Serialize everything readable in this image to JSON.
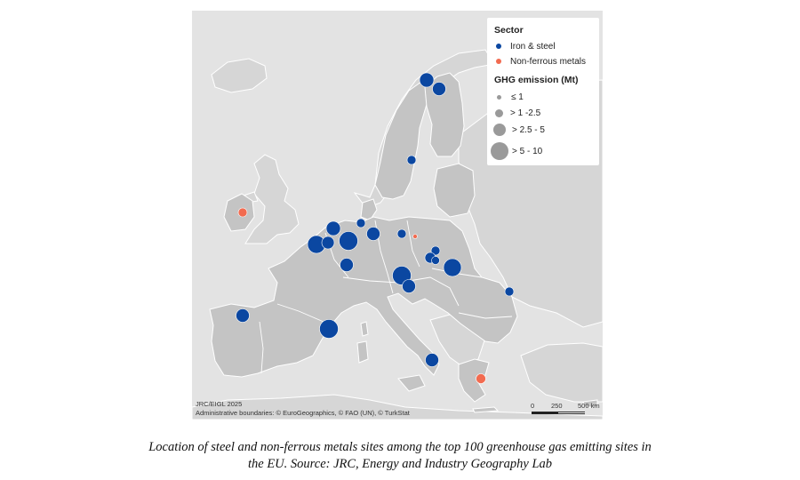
{
  "map": {
    "colors": {
      "background": "#e3e3e3",
      "eu_land": "#c4c4c4",
      "non_eu_land": "#d6d6d6",
      "borders": "#ffffff",
      "iron_steel": "#0b47a1",
      "non_ferrous": "#f26b50",
      "size_swatch": "#9a9a9a"
    },
    "legend": {
      "sector_title": "Sector",
      "sectors": [
        {
          "label": "Iron & steel",
          "icon": "blue-dot"
        },
        {
          "label": "Non-ferrous metals",
          "icon": "orange-dot"
        }
      ],
      "ghg_title": "GHG emission (Mt)",
      "size_classes": [
        {
          "label": "≤ 1"
        },
        {
          "label": "> 1 -2.5"
        },
        {
          "label": "> 2.5 - 5"
        },
        {
          "label": "> 5 - 10"
        }
      ]
    },
    "credits": {
      "line1": "JRC/EIGL 2025",
      "line2": "Administrative boundaries: © EuroGeographics, © FAO (UN), © TurkStat"
    },
    "scalebar": {
      "labels": [
        "0",
        "250",
        "500 km"
      ]
    }
  },
  "caption": {
    "line1": "Location of steel and non-ferrous metals sites among the top 100 greenhouse gas emitting sites in",
    "line2": "the EU. Source: JRC, Energy and Industry Geography Lab"
  }
}
